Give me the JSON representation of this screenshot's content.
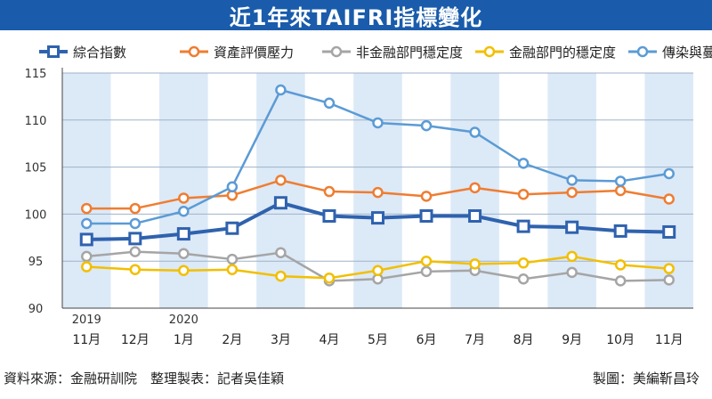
{
  "header": {
    "title": "近1年來TAIFRI指標變化"
  },
  "footer": {
    "source": "資料來源：金融研訓院　整理製表：記者吳佳穎",
    "credit": "製圖：美編靳昌玲"
  },
  "chart_data": {
    "type": "line",
    "title": "近1年來TAIFRI指標變化",
    "categories": [
      "11月",
      "12月",
      "1月",
      "2月",
      "3月",
      "4月",
      "5月",
      "6月",
      "7月",
      "8月",
      "9月",
      "10月",
      "11月"
    ],
    "year_labels": [
      {
        "index": 0,
        "label": "2019"
      },
      {
        "index": 2,
        "label": "2020"
      }
    ],
    "ylim": [
      90,
      115
    ],
    "yticks": [
      90,
      95,
      100,
      105,
      110,
      115
    ],
    "grid": true,
    "legend_position": "top",
    "series": [
      {
        "name": "綜合指數",
        "color": "#2f62ae",
        "width": 4,
        "marker": "square",
        "values": [
          97.3,
          97.4,
          97.9,
          98.5,
          101.2,
          99.8,
          99.6,
          99.8,
          99.8,
          98.7,
          98.6,
          98.2,
          98.1
        ]
      },
      {
        "name": "資產評價壓力",
        "color": "#ef7d31",
        "width": 2.5,
        "marker": "circle",
        "values": [
          100.6,
          100.6,
          101.7,
          102.0,
          103.6,
          102.4,
          102.3,
          101.9,
          102.8,
          102.1,
          102.3,
          102.5,
          101.6
        ]
      },
      {
        "name": "非金融部門穩定度",
        "color": "#a5a5a5",
        "width": 2.5,
        "marker": "circle",
        "values": [
          95.5,
          96.0,
          95.8,
          95.2,
          95.9,
          92.9,
          93.1,
          93.9,
          94.0,
          93.1,
          93.8,
          92.9,
          93.0
        ]
      },
      {
        "name": "金融部門的穩定度",
        "color": "#f2bf00",
        "width": 2.5,
        "marker": "circle",
        "values": [
          94.4,
          94.1,
          94.0,
          94.1,
          93.4,
          93.2,
          94.0,
          95.0,
          94.7,
          94.8,
          95.5,
          94.6,
          94.2
        ]
      },
      {
        "name": "傳染與蔓延",
        "color": "#5b9bd5",
        "width": 2.5,
        "marker": "circle",
        "values": [
          99.0,
          99.0,
          100.3,
          102.9,
          113.2,
          111.8,
          109.7,
          109.4,
          108.7,
          105.4,
          103.6,
          103.5,
          104.3
        ]
      }
    ]
  }
}
